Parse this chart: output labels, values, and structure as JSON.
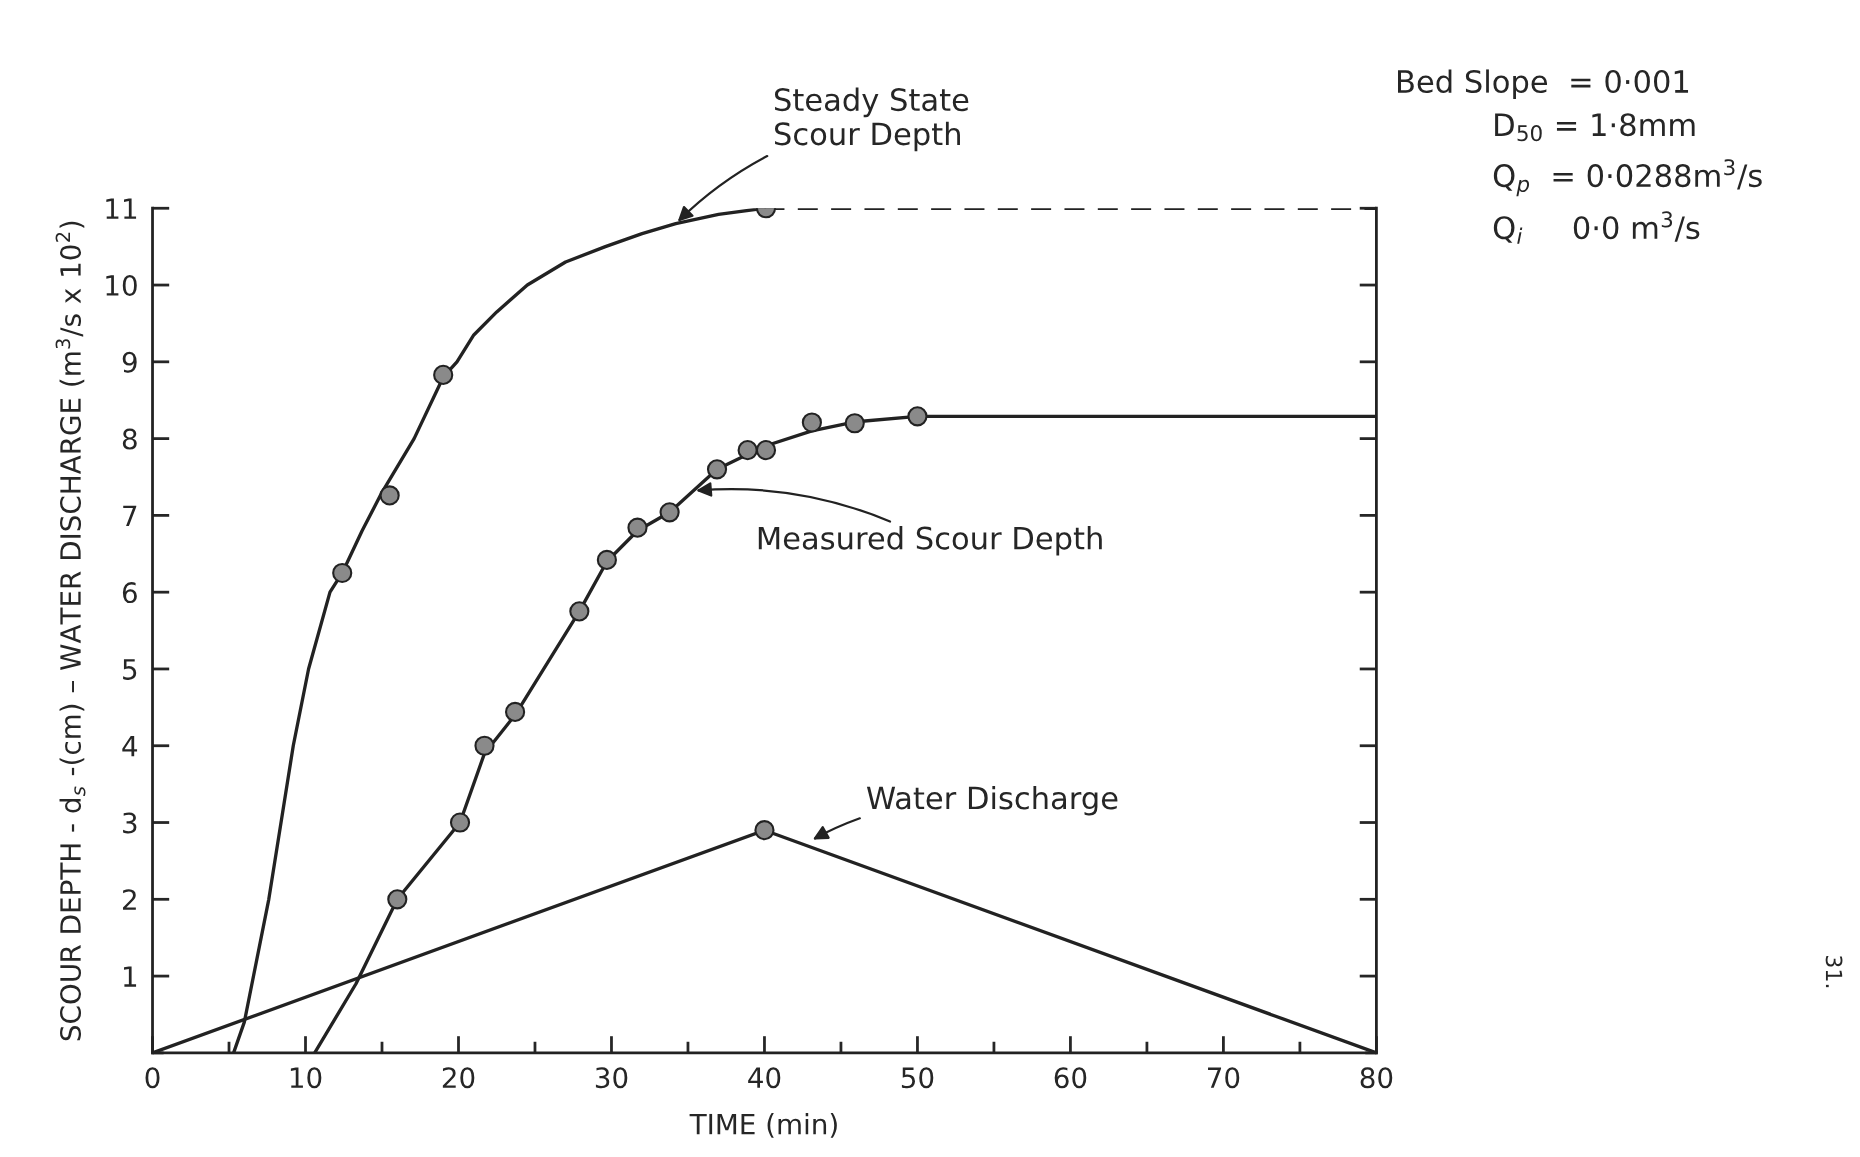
{
  "chart_data": {
    "type": "line",
    "xlabel": "TIME (min)",
    "ylabel": "SCOUR DEPTH - d$_{s}$ -(cm) – WATER DISCHARGE (m$^{3}$/s x 10$^{2}$)",
    "xlim": [
      0,
      80
    ],
    "ylim": [
      0,
      11
    ],
    "xticks": [
      0,
      {
        "value": 5,
        "label": null
      },
      10,
      {
        "value": 15,
        "label": null
      },
      20,
      {
        "value": 25,
        "label": null
      },
      30,
      {
        "value": 35,
        "label": null
      },
      40,
      {
        "value": 45,
        "label": null
      },
      50,
      {
        "value": 55,
        "label": null
      },
      60,
      {
        "value": 65,
        "label": null
      },
      70,
      {
        "value": 75,
        "label": null
      },
      80
    ],
    "yticks": [
      {
        "value": 0,
        "label": null
      },
      1,
      2,
      3,
      4,
      5,
      6,
      7,
      8,
      9,
      10,
      11
    ],
    "grid": false,
    "series": [
      {
        "type": "line",
        "color": "#222222",
        "line_style": "solid",
        "marker": "none",
        "x": [
          5.3,
          6,
          7.6,
          9.2,
          10.2,
          11.6,
          12.4,
          13.7,
          15,
          17.1,
          19,
          19.9,
          21,
          22.5,
          24.5,
          27,
          29.6,
          32,
          34.2,
          37,
          40
        ],
        "values": [
          0,
          0.4,
          2,
          4,
          5,
          6,
          6.25,
          6.8,
          7.3,
          8,
          8.8,
          9,
          9.35,
          9.65,
          10,
          10.3,
          10.5,
          10.67,
          10.8,
          10.92,
          11
        ]
      },
      {
        "type": "line",
        "color": "#222222",
        "line_style": "dashed",
        "marker": "none",
        "x": [
          40,
          80
        ],
        "values": [
          11,
          11
        ]
      },
      {
        "type": "scatter",
        "color": "#8a8a8a",
        "marker": "circle",
        "x": [
          12.4,
          15.5,
          19.0,
          40.1
        ],
        "values": [
          6.25,
          7.26,
          8.83,
          11.0
        ]
      },
      {
        "type": "line",
        "color": "#222222",
        "line_style": "solid",
        "marker": "none",
        "x": [
          10.6,
          13.3,
          16.0,
          20.1,
          21.7,
          23.7,
          27.9,
          29.7,
          31.7,
          33.8,
          36.9,
          40,
          43.1,
          46,
          50,
          80
        ],
        "values": [
          0,
          0.9,
          2.0,
          3.0,
          3.9,
          4.4,
          5.75,
          6.4,
          6.8,
          7.04,
          7.6,
          7.9,
          8.1,
          8.22,
          8.29,
          8.29
        ]
      },
      {
        "type": "scatter",
        "color": "#8a8a8a",
        "marker": "circle",
        "x": [
          16.0,
          20.1,
          21.7,
          23.7,
          27.9,
          29.7,
          31.7,
          33.8,
          36.9,
          38.9,
          40.1,
          43.1,
          45.9,
          50.0
        ],
        "values": [
          2.0,
          3.0,
          4.0,
          4.44,
          5.75,
          6.42,
          6.84,
          7.04,
          7.6,
          7.85,
          7.85,
          8.21,
          8.2,
          8.29
        ]
      },
      {
        "type": "line",
        "color": "#222222",
        "line_style": "solid",
        "marker": "none",
        "x": [
          0,
          40,
          80
        ],
        "values": [
          0,
          2.9,
          0
        ]
      },
      {
        "type": "scatter",
        "color": "#8a8a8a",
        "marker": "circle",
        "x": [
          40
        ],
        "values": [
          2.9
        ]
      }
    ],
    "annotations": [
      {
        "text": "Steady State\nScour Depth",
        "x": 34.2,
        "y": 10.8
      },
      {
        "text": "Measured Scour Depth",
        "x": 35.35,
        "y": 7.32
      },
      {
        "text": "Water Discharge",
        "x": 43.0,
        "y": 2.76
      },
      "Bed Slope  = 0·001\n          D$_{50}$ = 1·8mm\n          Q$_{p}$  = 0·0288m$^{3}$/s\n          Q$_{i}$     0·0 m$^{3}$/s",
      "31."
    ]
  }
}
